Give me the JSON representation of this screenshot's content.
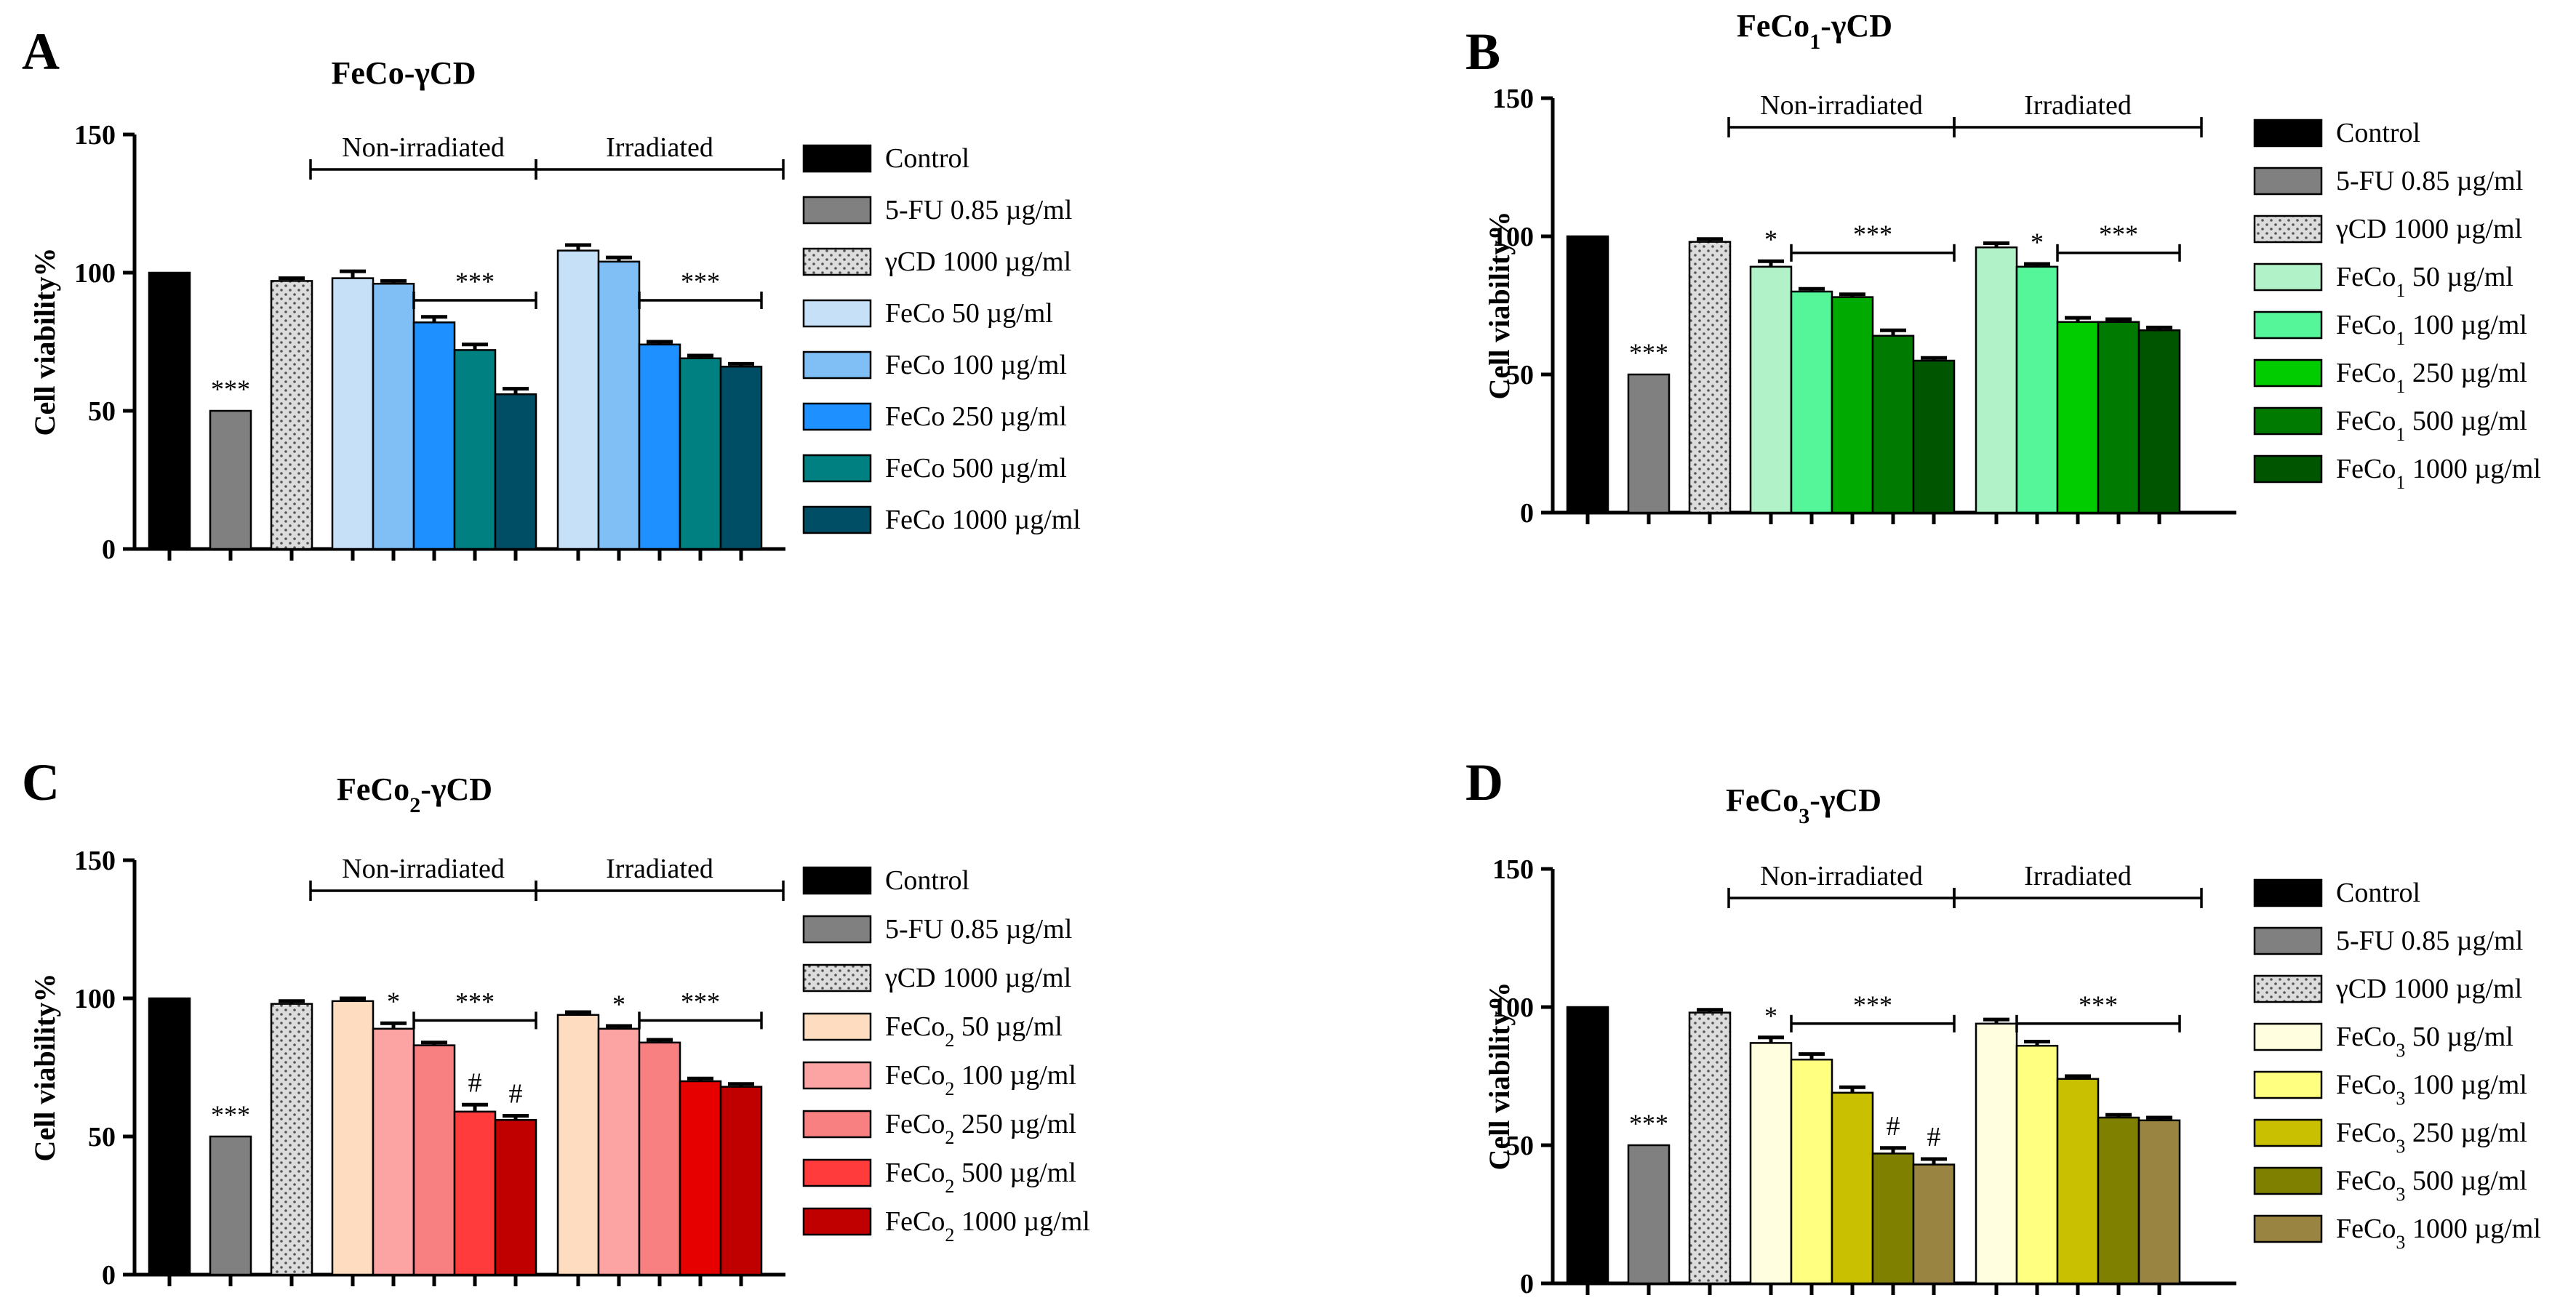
{
  "chart_data": [
    {
      "type": "bar",
      "panel_label": "A",
      "title": "FeCo-γCD",
      "ylabel": "Cell viability%",
      "ylim": [
        0,
        150
      ],
      "yticks": [
        "0",
        "50",
        "100",
        "150"
      ],
      "group_labels": [
        "Non-irradiated",
        "Irradiated"
      ],
      "bars": [
        {
          "name": "Control",
          "value": 100,
          "err": 0,
          "color": "#000000",
          "pattern": "solid"
        },
        {
          "name": "5-FU 0.85 µg/ml",
          "value": 50,
          "err": 0,
          "color": "#808080",
          "pattern": "solid",
          "annotation": "***"
        },
        {
          "name": "γCD 1000 µg/ml",
          "value": 97,
          "err": 1,
          "color": "#d0d0d0",
          "pattern": "dots"
        },
        {
          "name": "FeCo 50 µg/ml",
          "value": 98,
          "err": 2.5,
          "color": "#c5e0f7",
          "pattern": "solid"
        },
        {
          "name": "FeCo 100 µg/ml",
          "value": 96,
          "err": 1,
          "color": "#7fbff5",
          "pattern": "solid"
        },
        {
          "name": "FeCo 250 µg/ml",
          "value": 82,
          "err": 2,
          "color": "#1e90ff",
          "pattern": "solid"
        },
        {
          "name": "FeCo 500 µg/ml",
          "value": 72,
          "err": 2,
          "color": "#008080",
          "pattern": "solid"
        },
        {
          "name": "FeCo 1000 µg/ml",
          "value": 56,
          "err": 2,
          "color": "#004d66",
          "pattern": "solid"
        },
        {
          "name": "FeCo 50 µg/ml",
          "value": 108,
          "err": 2,
          "color": "#c5e0f7",
          "pattern": "solid"
        },
        {
          "name": "FeCo 100 µg/ml",
          "value": 104,
          "err": 1.5,
          "color": "#7fbff5",
          "pattern": "solid"
        },
        {
          "name": "FeCo 250 µg/ml",
          "value": 74,
          "err": 1,
          "color": "#1e90ff",
          "pattern": "solid"
        },
        {
          "name": "FeCo 500 µg/ml",
          "value": 69,
          "err": 1,
          "color": "#008080",
          "pattern": "solid"
        },
        {
          "name": "FeCo 1000 µg/ml",
          "value": 66,
          "err": 1,
          "color": "#004d66",
          "pattern": "solid"
        }
      ],
      "significance": [
        {
          "label": "***",
          "from": 5,
          "to": 7,
          "y": 90
        },
        {
          "label": "***",
          "from": 10,
          "to": 12,
          "y": 90
        }
      ],
      "legend": [
        {
          "label": "Control",
          "color": "#000000",
          "pattern": "solid"
        },
        {
          "label": "5-FU 0.85 µg/ml",
          "color": "#808080",
          "pattern": "solid"
        },
        {
          "label": "γCD 1000 µg/ml",
          "color": "#d0d0d0",
          "pattern": "dots"
        },
        {
          "label": "FeCo 50 µg/ml",
          "color": "#c5e0f7",
          "pattern": "solid"
        },
        {
          "label": "FeCo 100 µg/ml",
          "color": "#7fbff5",
          "pattern": "solid"
        },
        {
          "label": "FeCo 250 µg/ml",
          "color": "#1e90ff",
          "pattern": "solid"
        },
        {
          "label": "FeCo 500 µg/ml",
          "color": "#008080",
          "pattern": "solid"
        },
        {
          "label": "FeCo 1000 µg/ml",
          "color": "#004d66",
          "pattern": "solid"
        }
      ]
    },
    {
      "type": "bar",
      "panel_label": "B",
      "title": "FeCo1-γCD",
      "title_parts": [
        "FeCo",
        "1",
        "-γCD"
      ],
      "ylabel": "Cell viability%",
      "ylim": [
        0,
        150
      ],
      "yticks": [
        "0",
        "50",
        "100",
        "150"
      ],
      "group_labels": [
        "Non-irradiated",
        "Irradiated"
      ],
      "bars": [
        {
          "name": "Control",
          "value": 100,
          "err": 0,
          "color": "#000000",
          "pattern": "solid"
        },
        {
          "name": "5-FU 0.85 µg/ml",
          "value": 50,
          "err": 0,
          "color": "#808080",
          "pattern": "solid",
          "annotation": "***"
        },
        {
          "name": "γCD 1000 µg/ml",
          "value": 98,
          "err": 1,
          "color": "#d0d0d0",
          "pattern": "dots"
        },
        {
          "name": "FeCo1 50 µg/ml",
          "value": 89,
          "err": 2,
          "color": "#b2f2c8",
          "pattern": "solid",
          "annotation": "*"
        },
        {
          "name": "FeCo1 100 µg/ml",
          "value": 80,
          "err": 1,
          "color": "#55f59a",
          "pattern": "solid"
        },
        {
          "name": "FeCo1 250 µg/ml",
          "value": 78,
          "err": 1,
          "color": "#00aa00",
          "pattern": "solid"
        },
        {
          "name": "FeCo1 500 µg/ml",
          "value": 64,
          "err": 2,
          "color": "#007a00",
          "pattern": "solid"
        },
        {
          "name": "FeCo1 1000 µg/ml",
          "value": 55,
          "err": 1,
          "color": "#005500",
          "pattern": "solid"
        },
        {
          "name": "FeCo1 50 µg/ml",
          "value": 96,
          "err": 1.5,
          "color": "#b2f2c8",
          "pattern": "solid"
        },
        {
          "name": "FeCo1 100 µg/ml",
          "value": 89,
          "err": 1,
          "color": "#55f59a",
          "pattern": "solid",
          "annotation": "*"
        },
        {
          "name": "FeCo1 250 µg/ml",
          "value": 69,
          "err": 1.5,
          "color": "#00cc00",
          "pattern": "solid"
        },
        {
          "name": "FeCo1 500 µg/ml",
          "value": 69,
          "err": 1,
          "color": "#007a00",
          "pattern": "solid"
        },
        {
          "name": "FeCo1 1000 µg/ml",
          "value": 66,
          "err": 1,
          "color": "#005500",
          "pattern": "solid"
        }
      ],
      "significance": [
        {
          "label": "***",
          "from": 4,
          "to": 7,
          "y": 94
        },
        {
          "label": "***",
          "from": 10,
          "to": 12,
          "y": 94
        }
      ],
      "legend": [
        {
          "label": "Control",
          "color": "#000000",
          "pattern": "solid"
        },
        {
          "label": "5-FU 0.85 µg/ml",
          "color": "#808080",
          "pattern": "solid"
        },
        {
          "label": "γCD 1000 µg/ml",
          "color": "#d0d0d0",
          "pattern": "dots"
        },
        {
          "label": "FeCo1 50 µg/ml",
          "prefix": "FeCo",
          "sub": "1",
          "suffix": " 50 µg/ml",
          "color": "#b2f2c8",
          "pattern": "solid"
        },
        {
          "label": "FeCo1 100 µg/ml",
          "prefix": "FeCo",
          "sub": "1",
          "suffix": " 100 µg/ml",
          "color": "#55f59a",
          "pattern": "solid"
        },
        {
          "label": "FeCo1 250 µg/ml",
          "prefix": "FeCo",
          "sub": "1",
          "suffix": " 250 µg/ml",
          "color": "#00cc00",
          "pattern": "solid"
        },
        {
          "label": "FeCo1 500 µg/ml",
          "prefix": "FeCo",
          "sub": "1",
          "suffix": " 500 µg/ml",
          "color": "#007a00",
          "pattern": "solid"
        },
        {
          "label": "FeCo1 1000 µg/ml",
          "prefix": "FeCo",
          "sub": "1",
          "suffix": " 1000 µg/ml",
          "color": "#005500",
          "pattern": "solid"
        }
      ]
    },
    {
      "type": "bar",
      "panel_label": "C",
      "title": "FeCo2-γCD",
      "title_parts": [
        "FeCo",
        "2",
        "-γCD"
      ],
      "ylabel": "Cell viability%",
      "ylim": [
        0,
        150
      ],
      "yticks": [
        "0",
        "50",
        "100",
        "150"
      ],
      "group_labels": [
        "Non-irradiated",
        "Irradiated"
      ],
      "bars": [
        {
          "name": "Control",
          "value": 100,
          "err": 0,
          "color": "#000000",
          "pattern": "solid"
        },
        {
          "name": "5-FU 0.85 µg/ml",
          "value": 50,
          "err": 0,
          "color": "#808080",
          "pattern": "solid",
          "annotation": "***"
        },
        {
          "name": "γCD 1000 µg/ml",
          "value": 98,
          "err": 1,
          "color": "#d0d0d0",
          "pattern": "dots"
        },
        {
          "name": "FeCo2 50 µg/ml",
          "value": 99,
          "err": 1,
          "color": "#fddcc0",
          "pattern": "solid"
        },
        {
          "name": "FeCo2 100 µg/ml",
          "value": 89,
          "err": 2,
          "color": "#fca3a3",
          "pattern": "solid",
          "annotation": "*"
        },
        {
          "name": "FeCo2 250 µg/ml",
          "value": 83,
          "err": 1,
          "color": "#f98080",
          "pattern": "solid"
        },
        {
          "name": "FeCo2 500 µg/ml",
          "value": 59,
          "err": 2.5,
          "color": "#ff3b3b",
          "pattern": "solid",
          "annotation": "#"
        },
        {
          "name": "FeCo2 1000 µg/ml",
          "value": 56,
          "err": 1.5,
          "color": "#c00000",
          "pattern": "solid",
          "annotation": "#"
        },
        {
          "name": "FeCo2 50 µg/ml",
          "value": 94,
          "err": 1,
          "color": "#fddcc0",
          "pattern": "solid"
        },
        {
          "name": "FeCo2 100 µg/ml",
          "value": 89,
          "err": 1,
          "color": "#fca3a3",
          "pattern": "solid",
          "annotation": "*"
        },
        {
          "name": "FeCo2 250 µg/ml",
          "value": 84,
          "err": 1,
          "color": "#f98080",
          "pattern": "solid"
        },
        {
          "name": "FeCo2 500 µg/ml",
          "value": 70,
          "err": 1,
          "color": "#e60000",
          "pattern": "solid"
        },
        {
          "name": "FeCo2 1000 µg/ml",
          "value": 68,
          "err": 1,
          "color": "#c00000",
          "pattern": "solid"
        }
      ],
      "significance": [
        {
          "label": "***",
          "from": 5,
          "to": 7,
          "y": 92
        },
        {
          "label": "***",
          "from": 10,
          "to": 12,
          "y": 92
        }
      ],
      "legend": [
        {
          "label": "Control",
          "color": "#000000",
          "pattern": "solid"
        },
        {
          "label": "5-FU 0.85 µg/ml",
          "color": "#808080",
          "pattern": "solid"
        },
        {
          "label": "γCD 1000 µg/ml",
          "color": "#d0d0d0",
          "pattern": "dots"
        },
        {
          "label": "FeCo2 50 µg/ml",
          "prefix": "FeCo",
          "sub": "2",
          "suffix": " 50 µg/ml",
          "color": "#fddcc0",
          "pattern": "solid"
        },
        {
          "label": "FeCo2 100 µg/ml",
          "prefix": "FeCo",
          "sub": "2",
          "suffix": " 100 µg/ml",
          "color": "#fca3a3",
          "pattern": "solid"
        },
        {
          "label": "FeCo2 250 µg/ml",
          "prefix": "FeCo",
          "sub": "2",
          "suffix": " 250 µg/ml",
          "color": "#f98080",
          "pattern": "solid"
        },
        {
          "label": "FeCo2 500 µg/ml",
          "prefix": "FeCo",
          "sub": "2",
          "suffix": " 500 µg/ml",
          "color": "#ff3b3b",
          "pattern": "solid"
        },
        {
          "label": "FeCo2 1000 µg/ml",
          "prefix": "FeCo",
          "sub": "2",
          "suffix": " 1000 µg/ml",
          "color": "#c00000",
          "pattern": "solid"
        }
      ]
    },
    {
      "type": "bar",
      "panel_label": "D",
      "title": "FeCo3-γCD",
      "title_parts": [
        "FeCo",
        "3",
        "-γCD"
      ],
      "ylabel": "Cell viability%",
      "ylim": [
        0,
        150
      ],
      "yticks": [
        "0",
        "50",
        "100",
        "150"
      ],
      "group_labels": [
        "Non-irradiated",
        "Irradiated"
      ],
      "bars": [
        {
          "name": "Control",
          "value": 100,
          "err": 0,
          "color": "#000000",
          "pattern": "solid"
        },
        {
          "name": "5-FU 0.85 µg/ml",
          "value": 50,
          "err": 0,
          "color": "#808080",
          "pattern": "solid",
          "annotation": "***"
        },
        {
          "name": "γCD 1000 µg/ml",
          "value": 98,
          "err": 1,
          "color": "#d0d0d0",
          "pattern": "dots"
        },
        {
          "name": "FeCo3 50 µg/ml",
          "value": 87,
          "err": 2,
          "color": "#ffffe0",
          "pattern": "solid",
          "annotation": "*"
        },
        {
          "name": "FeCo3 100 µg/ml",
          "value": 81,
          "err": 2,
          "color": "#ffff80",
          "pattern": "solid"
        },
        {
          "name": "FeCo3 250 µg/ml",
          "value": 69,
          "err": 2,
          "color": "#c8c000",
          "pattern": "solid"
        },
        {
          "name": "FeCo3 500 µg/ml",
          "value": 47,
          "err": 2,
          "color": "#808000",
          "pattern": "solid",
          "annotation": "#"
        },
        {
          "name": "FeCo3 1000 µg/ml",
          "value": 43,
          "err": 2,
          "color": "#9a8442",
          "pattern": "solid",
          "annotation": "#"
        },
        {
          "name": "FeCo3 50 µg/ml",
          "value": 94,
          "err": 1.5,
          "color": "#ffffe0",
          "pattern": "solid"
        },
        {
          "name": "FeCo3 100 µg/ml",
          "value": 86,
          "err": 1.5,
          "color": "#ffff80",
          "pattern": "solid"
        },
        {
          "name": "FeCo3 250 µg/ml",
          "value": 74,
          "err": 1,
          "color": "#c8c000",
          "pattern": "solid"
        },
        {
          "name": "FeCo3 500 µg/ml",
          "value": 60,
          "err": 1,
          "color": "#808000",
          "pattern": "solid"
        },
        {
          "name": "FeCo3 1000 µg/ml",
          "value": 59,
          "err": 1,
          "color": "#9a8442",
          "pattern": "solid"
        }
      ],
      "significance": [
        {
          "label": "***",
          "from": 4,
          "to": 7,
          "y": 94
        },
        {
          "label": "***",
          "from": 9,
          "to": 12,
          "y": 94
        }
      ],
      "legend": [
        {
          "label": "Control",
          "color": "#000000",
          "pattern": "solid"
        },
        {
          "label": "5-FU 0.85 µg/ml",
          "color": "#808080",
          "pattern": "solid"
        },
        {
          "label": "γCD 1000 µg/ml",
          "color": "#d0d0d0",
          "pattern": "dots"
        },
        {
          "label": "FeCo3 50 µg/ml",
          "prefix": "FeCo",
          "sub": "3",
          "suffix": " 50 µg/ml",
          "color": "#ffffe0",
          "pattern": "solid"
        },
        {
          "label": "FeCo3 100 µg/ml",
          "prefix": "FeCo",
          "sub": "3",
          "suffix": " 100 µg/ml",
          "color": "#ffff80",
          "pattern": "solid"
        },
        {
          "label": "FeCo3 250 µg/ml",
          "prefix": "FeCo",
          "sub": "3",
          "suffix": " 250 µg/ml",
          "color": "#c8c000",
          "pattern": "solid"
        },
        {
          "label": "FeCo3 500 µg/ml",
          "prefix": "FeCo",
          "sub": "3",
          "suffix": " 500 µg/ml",
          "color": "#808000",
          "pattern": "solid"
        },
        {
          "label": "FeCo3 1000 µg/ml",
          "prefix": "FeCo",
          "sub": "3",
          "suffix": " 1000 µg/ml",
          "color": "#9a8442",
          "pattern": "solid"
        }
      ]
    }
  ]
}
